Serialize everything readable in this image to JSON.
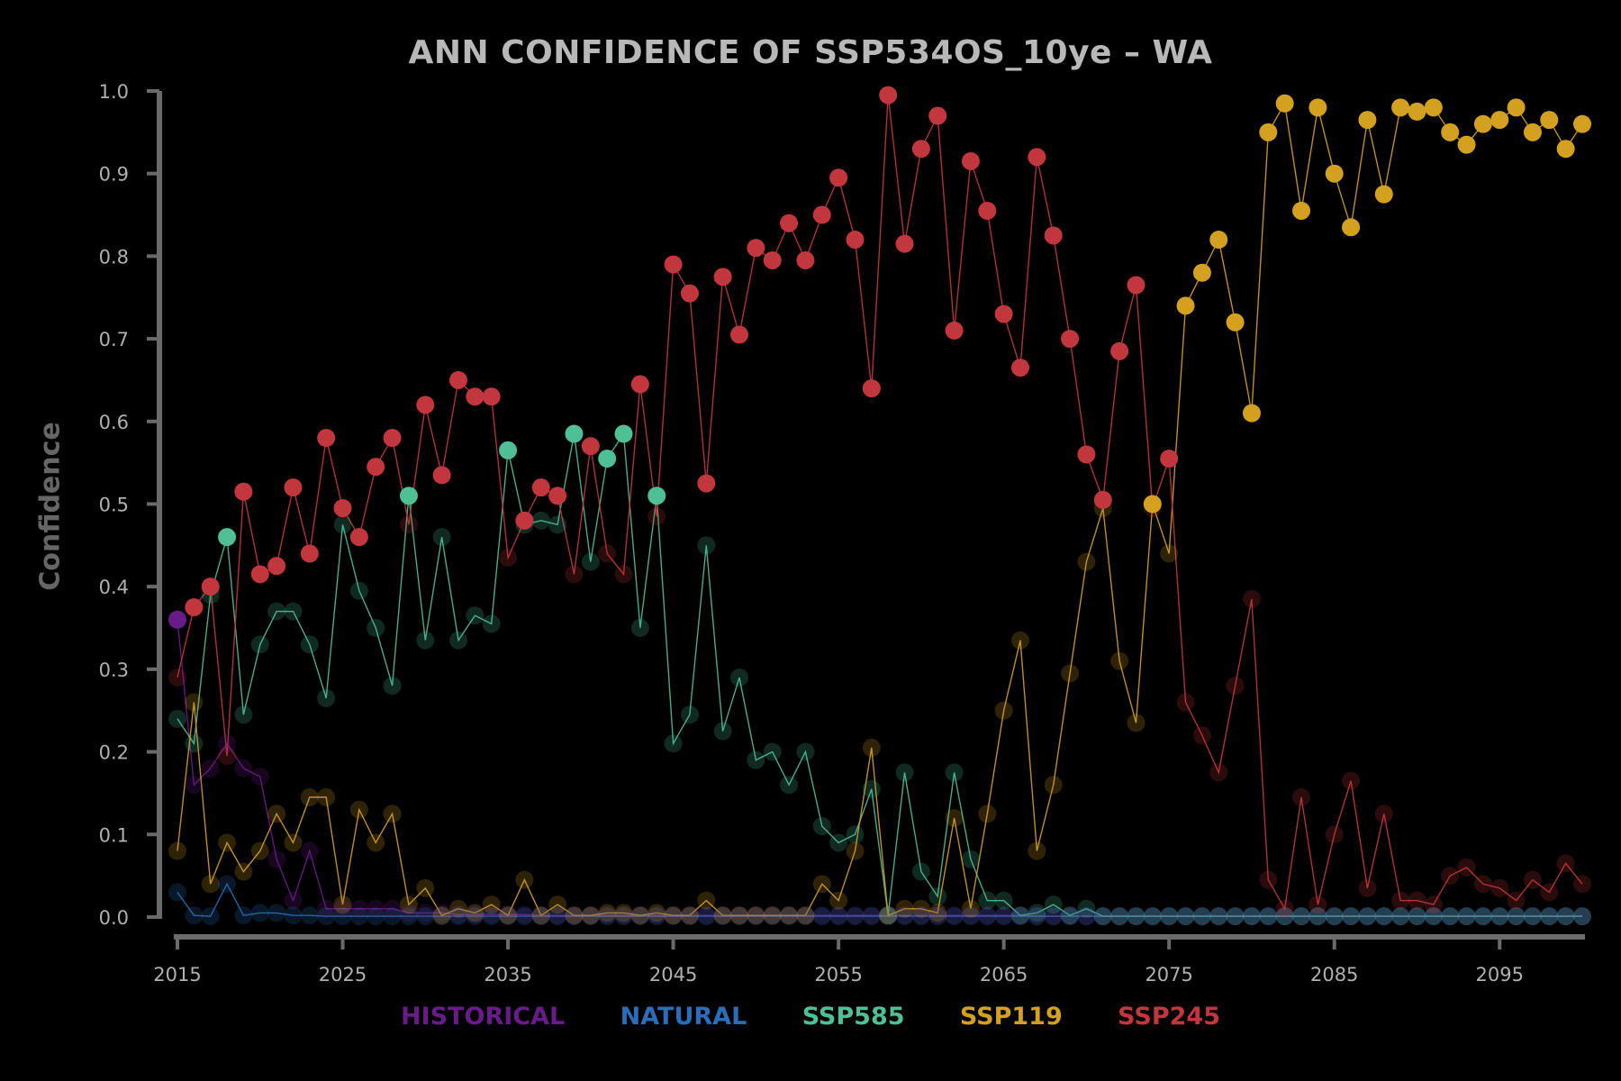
{
  "chart_data": {
    "type": "line",
    "title": "ANN CONFIDENCE OF SSP534OS_10ye – WA",
    "xlabel": "",
    "ylabel": "Confidence",
    "xlim": [
      2015,
      2100
    ],
    "ylim": [
      0,
      1.0
    ],
    "y_ticks": [
      "0.0",
      "0.1",
      "0.2",
      "0.3",
      "0.4",
      "0.5",
      "0.6",
      "0.7",
      "0.8",
      "0.9",
      "1.0"
    ],
    "x_ticks": [
      "2015",
      "2025",
      "2035",
      "2045",
      "2055",
      "2065",
      "2075",
      "2085",
      "2095"
    ],
    "grid": false,
    "legend_position": "bottom-center",
    "x_start": 2015,
    "series": [
      {
        "name": "HISTORICAL",
        "color": "#6a1b8a",
        "values": [
          0.36,
          0.16,
          0.18,
          0.21,
          0.18,
          0.17,
          0.07,
          0.02,
          0.08,
          0.01,
          0.01,
          0.01,
          0.01,
          0.01,
          0.005,
          0.005,
          0.005,
          0.003,
          0.003,
          0.003,
          0.003,
          0.003,
          0.002,
          0.002,
          0.002,
          0.002,
          0.002,
          0.002,
          0.002,
          0.002,
          0.002,
          0.002,
          0.002,
          0.002,
          0.002,
          0.002,
          0.002,
          0.002,
          0.002,
          0.002,
          0.002,
          0.002,
          0.002,
          0.002,
          0.002,
          0.002,
          0.002,
          0.002,
          0.002,
          0.002,
          0.002,
          0.002,
          0.001,
          0.001,
          0.001,
          0.001,
          0.001,
          0.001,
          0.001,
          0.001,
          0.001,
          0.001,
          0.001,
          0.001,
          0.001,
          0.001,
          0.001,
          0.001,
          0.001,
          0.001,
          0.001,
          0.001,
          0.001,
          0.001,
          0.001,
          0.001,
          0.001,
          0.001,
          0.001,
          0.001,
          0.001,
          0.001,
          0.001,
          0.001,
          0.001,
          0.001
        ]
      },
      {
        "name": "NATURAL",
        "color": "#2a6db8",
        "values": [
          0.03,
          0.002,
          0.001,
          0.04,
          0.002,
          0.005,
          0.005,
          0.002,
          0.002,
          0.001,
          0.001,
          0.001,
          0.001,
          0.001,
          0.001,
          0.001,
          0.001,
          0.001,
          0.001,
          0.001,
          0.001,
          0.001,
          0.001,
          0.001,
          0.001,
          0.001,
          0.001,
          0.001,
          0.001,
          0.001,
          0.001,
          0.001,
          0.001,
          0.001,
          0.001,
          0.001,
          0.001,
          0.001,
          0.001,
          0.001,
          0.001,
          0.001,
          0.001,
          0.001,
          0.001,
          0.001,
          0.001,
          0.001,
          0.001,
          0.001,
          0.001,
          0.001,
          0.001,
          0.001,
          0.001,
          0.001,
          0.001,
          0.001,
          0.001,
          0.001,
          0.001,
          0.001,
          0.001,
          0.001,
          0.001,
          0.001,
          0.001,
          0.001,
          0.001,
          0.001,
          0.001,
          0.001,
          0.001,
          0.001,
          0.001,
          0.001,
          0.001,
          0.001,
          0.001,
          0.001,
          0.001,
          0.001,
          0.001,
          0.001,
          0.001,
          0.001
        ]
      },
      {
        "name": "SSP585",
        "color": "#4fbf96",
        "values": [
          0.24,
          0.21,
          0.39,
          0.46,
          0.245,
          0.33,
          0.37,
          0.37,
          0.33,
          0.265,
          0.475,
          0.395,
          0.35,
          0.28,
          0.51,
          0.335,
          0.46,
          0.335,
          0.365,
          0.355,
          0.565,
          0.475,
          0.48,
          0.475,
          0.585,
          0.43,
          0.555,
          0.585,
          0.35,
          0.51,
          0.21,
          0.245,
          0.45,
          0.225,
          0.29,
          0.19,
          0.2,
          0.16,
          0.2,
          0.11,
          0.09,
          0.1,
          0.155,
          0.002,
          0.175,
          0.055,
          0.025,
          0.175,
          0.07,
          0.02,
          0.02,
          0.002,
          0.005,
          0.015,
          0.002,
          0.01,
          0.001,
          0.001,
          0.001,
          0.001,
          0.001,
          0.001,
          0.001,
          0.001,
          0.001,
          0.001,
          0.001,
          0.001,
          0.001,
          0.001,
          0.001,
          0.001,
          0.001,
          0.001,
          0.001,
          0.001,
          0.001,
          0.001,
          0.001,
          0.001,
          0.001,
          0.001,
          0.001,
          0.001,
          0.001,
          0.001
        ]
      },
      {
        "name": "SSP119",
        "color": "#d4a020",
        "values": [
          0.08,
          0.26,
          0.04,
          0.09,
          0.055,
          0.08,
          0.125,
          0.09,
          0.145,
          0.145,
          0.015,
          0.13,
          0.09,
          0.125,
          0.015,
          0.035,
          0.002,
          0.01,
          0.005,
          0.015,
          0.002,
          0.045,
          0.002,
          0.015,
          0.002,
          0.002,
          0.005,
          0.005,
          0.002,
          0.005,
          0.002,
          0.002,
          0.02,
          0.002,
          0.002,
          0.002,
          0.002,
          0.002,
          0.002,
          0.04,
          0.02,
          0.08,
          0.205,
          0.002,
          0.01,
          0.01,
          0.005,
          0.12,
          0.01,
          0.125,
          0.25,
          0.335,
          0.08,
          0.16,
          0.295,
          0.43,
          0.495,
          0.31,
          0.235,
          0.5,
          0.44,
          0.74,
          0.78,
          0.82,
          0.72,
          0.61,
          0.95,
          0.985,
          0.855,
          0.98,
          0.9,
          0.835,
          0.965,
          0.875,
          0.98,
          0.975,
          0.98,
          0.95,
          0.935,
          0.96,
          0.965,
          0.98,
          0.95,
          0.965,
          0.93,
          0.96
        ]
      },
      {
        "name": "SSP245",
        "color": "#c2373d",
        "values": [
          0.29,
          0.375,
          0.4,
          0.195,
          0.515,
          0.415,
          0.425,
          0.52,
          0.44,
          0.58,
          0.495,
          0.46,
          0.545,
          0.58,
          0.475,
          0.62,
          0.535,
          0.65,
          0.63,
          0.63,
          0.435,
          0.48,
          0.52,
          0.51,
          0.415,
          0.57,
          0.44,
          0.415,
          0.645,
          0.485,
          0.79,
          0.755,
          0.525,
          0.775,
          0.705,
          0.81,
          0.795,
          0.84,
          0.795,
          0.85,
          0.895,
          0.82,
          0.64,
          0.995,
          0.815,
          0.93,
          0.97,
          0.71,
          0.915,
          0.855,
          0.73,
          0.665,
          0.92,
          0.825,
          0.7,
          0.56,
          0.505,
          0.685,
          0.765,
          0.495,
          0.555,
          0.26,
          0.22,
          0.175,
          0.28,
          0.385,
          0.045,
          0.01,
          0.145,
          0.015,
          0.1,
          0.165,
          0.035,
          0.125,
          0.02,
          0.02,
          0.015,
          0.05,
          0.06,
          0.04,
          0.035,
          0.02,
          0.045,
          0.03,
          0.065,
          0.04
        ]
      }
    ]
  }
}
